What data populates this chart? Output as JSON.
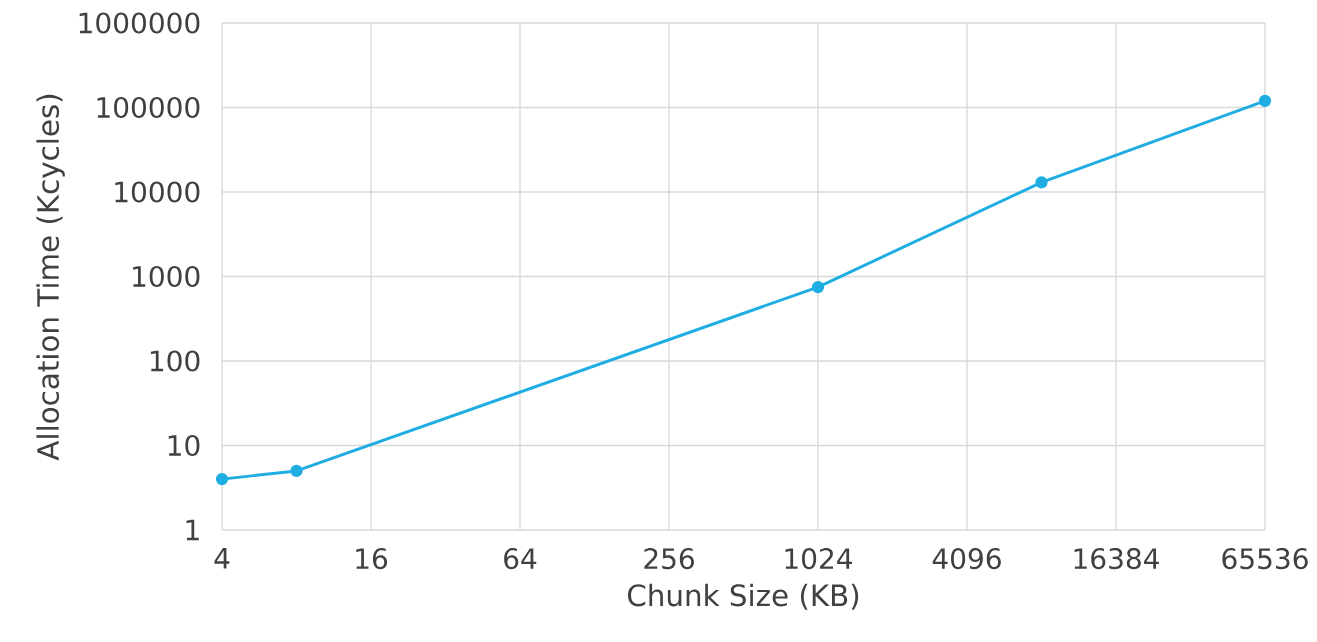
{
  "chart_data": {
    "type": "line",
    "xlabel": "Chunk Size (KB)",
    "ylabel": "Allocation Time (Kcycles)",
    "x": [
      4,
      8,
      1024,
      8192,
      65536
    ],
    "series": [
      {
        "color": "#1fade2",
        "values": [
          4,
          5,
          750,
          13000,
          120000
        ]
      }
    ],
    "xlim": [
      4,
      65536
    ],
    "ylim": [
      1,
      1000000
    ],
    "xticks": [
      4,
      16,
      64,
      256,
      1024,
      4096,
      16384,
      65536
    ],
    "yticks": [
      1,
      10,
      100,
      1000,
      10000,
      100000,
      1000000
    ],
    "log": "xy",
    "grid": true,
    "marker": "circle",
    "line_style": "solid"
  }
}
